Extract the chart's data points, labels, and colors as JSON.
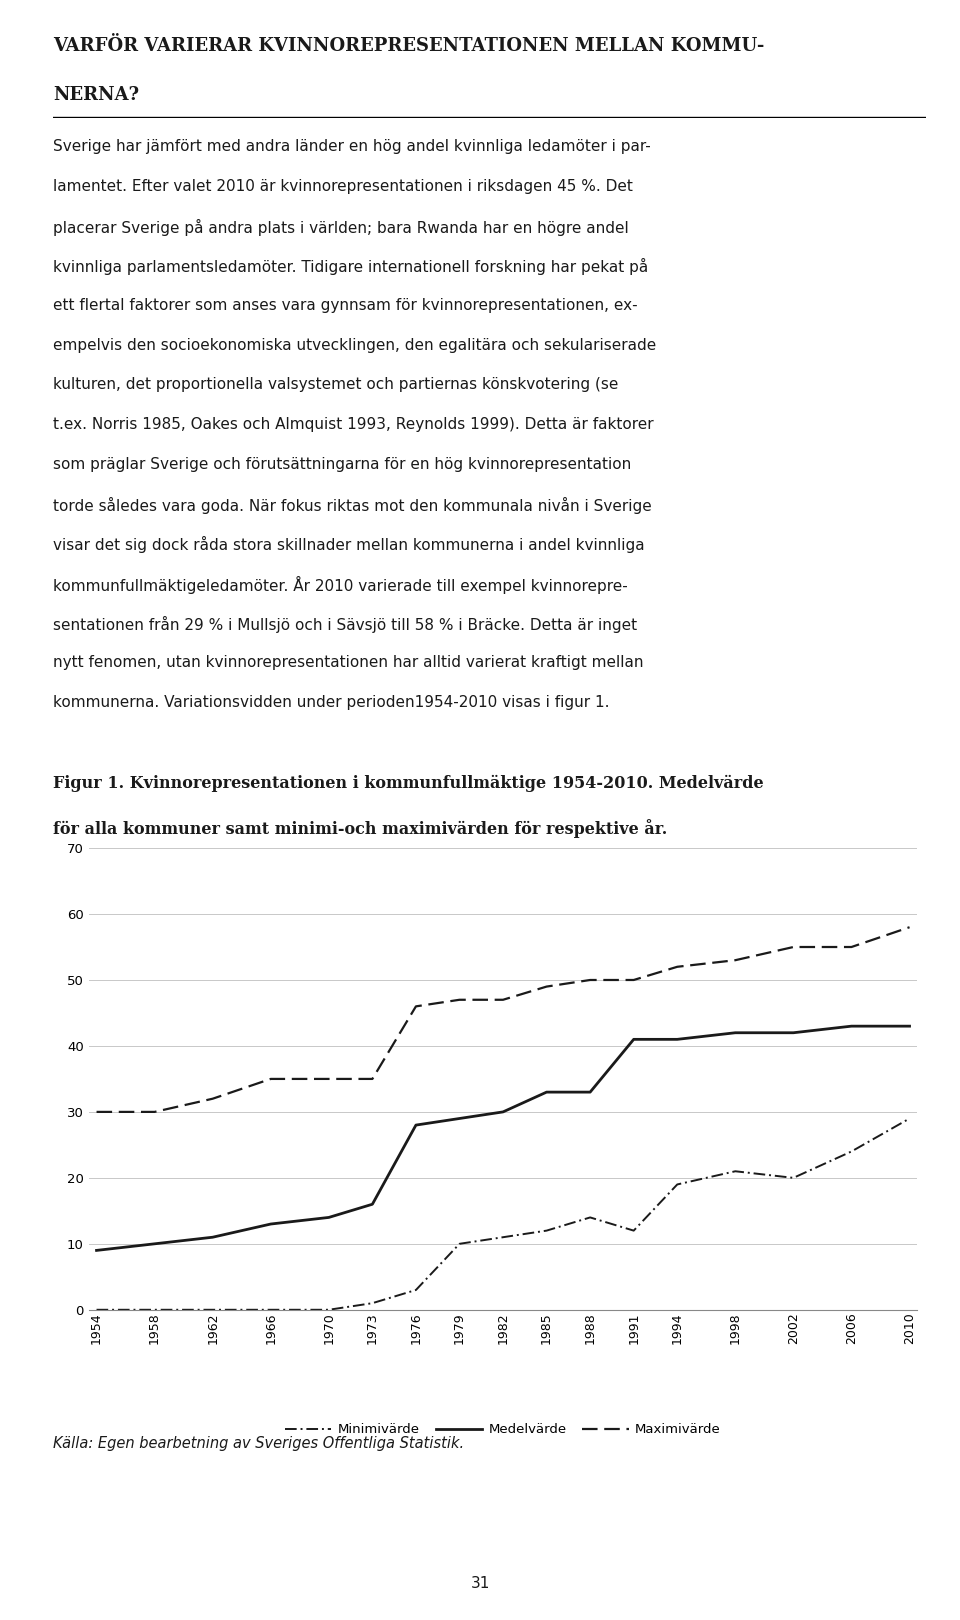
{
  "years": [
    1954,
    1958,
    1962,
    1966,
    1970,
    1973,
    1976,
    1979,
    1982,
    1985,
    1988,
    1991,
    1994,
    1998,
    2002,
    2006,
    2010
  ],
  "medel": [
    9,
    10,
    11,
    13,
    14,
    16,
    28,
    29,
    30,
    33,
    33,
    41,
    41,
    42,
    42,
    43,
    43
  ],
  "max_vals": [
    30,
    30,
    32,
    35,
    35,
    35,
    46,
    47,
    47,
    49,
    50,
    50,
    52,
    53,
    55,
    55,
    58
  ],
  "min_vals": [
    0,
    0,
    0,
    0,
    0,
    1,
    3,
    10,
    11,
    12,
    14,
    12,
    19,
    21,
    20,
    24,
    29
  ],
  "main_title_line1": "VARFÖR VARIERAR KVINNOREPRESENTATIONEN MELLAN KOMMU-",
  "main_title_line2": "NERNA?",
  "para_lines": [
    "Sverige har jämfört med andra länder en hög andel kvinnliga ledamöter i par-",
    "lamentet. Efter valet 2010 är kvinnorepresentationen i riksdagen 45 %. Det",
    "placerar Sverige på andra plats i världen; bara Rwanda har en högre andel",
    "kvinnliga parlamentsledamöter. Tidigare internationell forskning har pekat på",
    "ett flertal faktorer som anses vara gynnsam för kvinnorepresentationen, ex-",
    "empelvis den socioekonomiska utvecklingen, den egalitära och sekulariserade",
    "kulturen, det proportionella valsystemet och partiernas könskvotering (se",
    "t.ex. Norris 1985, Oakes och Almquist 1993, Reynolds 1999). Detta är faktorer",
    "som präglar Sverige och förutsättningarna för en hög kvinnorepresentation",
    "torde således vara goda. När fokus riktas mot den kommunala nivån i Sverige",
    "visar det sig dock råda stora skillnader mellan kommunerna i andel kvinnliga",
    "kommunfullmäktigeledamöter. År 2010 varierade till exempel kvinnorepre-",
    "sentationen från 29 % i Mullsjö och i Sävsjö till 58 % i Bräcke. Detta är inget",
    "nytt fenomen, utan kvinnorepresentationen har alltid varierat kraftigt mellan",
    "kommunerna. Variationsvidden under perioden1954-2010 visas i figur 1."
  ],
  "fig_caption_line1": "Figur 1. Kvinnorepresentationen i kommunfullmäktige 1954-2010. Medelvärde",
  "fig_caption_line2": "för alla kommuner samt minimi-och maximivärden för respektive år.",
  "source_text": "Källa: Egen bearbetning av Sveriges Offentliga Statistik.",
  "legend_min": "Minimivärde",
  "legend_med": "Medelvärde",
  "legend_max": "Maximivärde",
  "page_number": "31",
  "ylim": [
    0,
    70
  ],
  "yticks": [
    0,
    10,
    20,
    30,
    40,
    50,
    60,
    70
  ],
  "background_color": "#ffffff",
  "line_color": "#1a1a1a",
  "text_color": "#1a1a1a",
  "grid_color": "#c8c8c8",
  "border_color": "#888888"
}
